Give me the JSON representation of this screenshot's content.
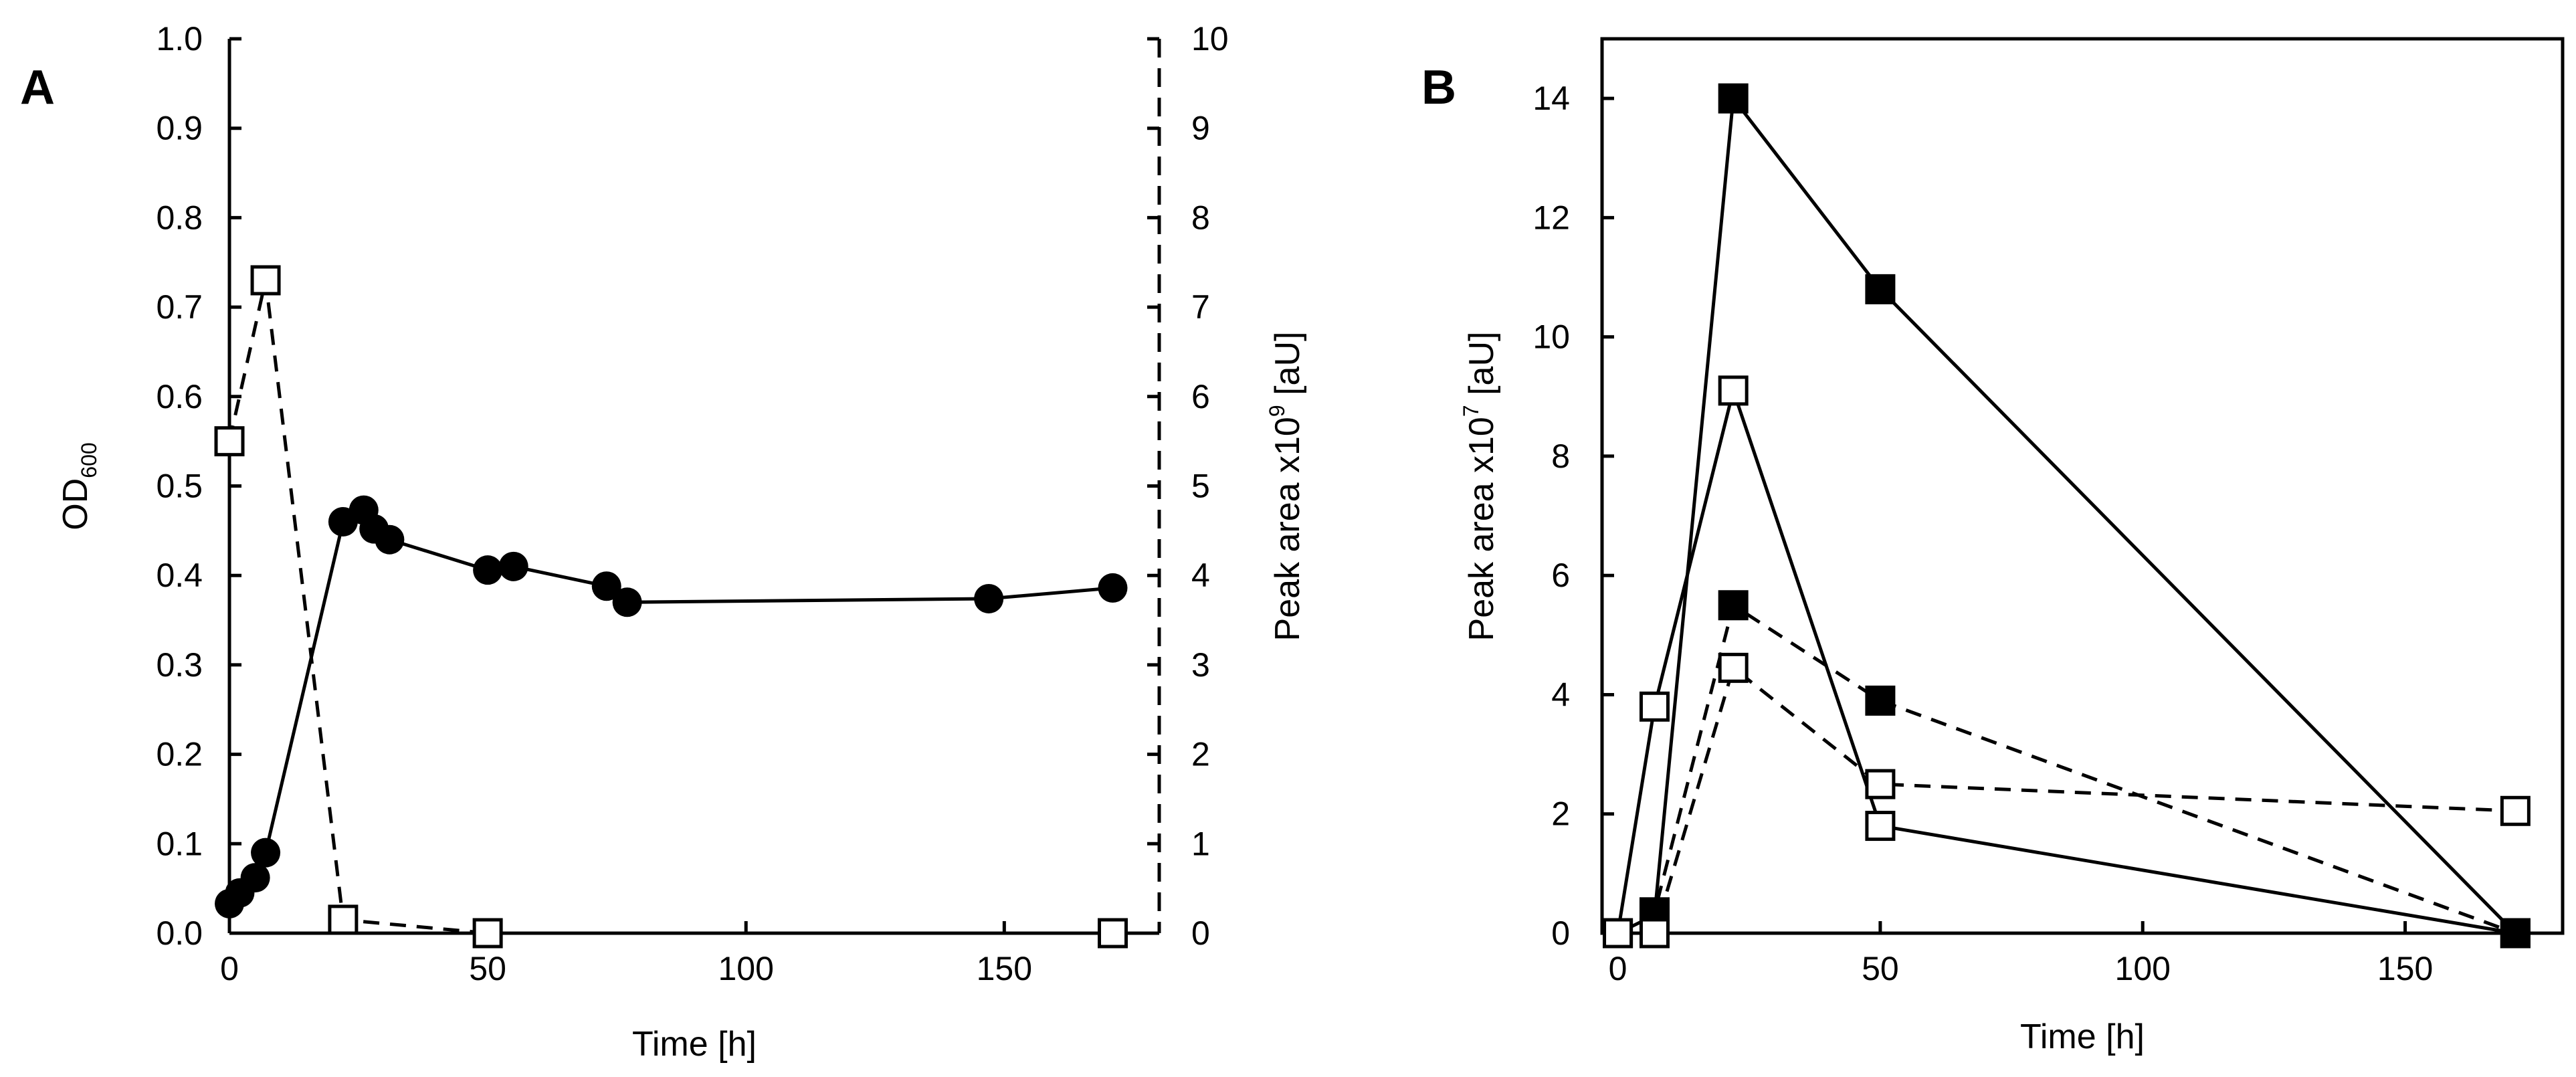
{
  "colors": {
    "ink": "#000000",
    "open_marker_fill": "#ffffff"
  },
  "chart_data": [
    {
      "panel": "A",
      "type": "line",
      "xlabel": "Time [h]",
      "x_ticks": [
        "0",
        "50",
        "100",
        "150"
      ],
      "xlim": [
        0,
        180
      ],
      "ylabel_left": {
        "base": "OD",
        "sub": "600"
      },
      "ylim_left": [
        0,
        1.0
      ],
      "y_ticks_left": [
        "0.0",
        "0.1",
        "0.2",
        "0.3",
        "0.4",
        "0.5",
        "0.6",
        "0.7",
        "0.8",
        "0.9",
        "1.0"
      ],
      "ylabel_right": {
        "prefix": "Peak area  x10",
        "sup": "9",
        "suffix": " [aU]"
      },
      "ylim_right": [
        0,
        10
      ],
      "y_ticks_right": [
        "0",
        "1",
        "2",
        "3",
        "4",
        "5",
        "6",
        "7",
        "8",
        "9",
        "10"
      ],
      "series": [
        {
          "name": "OD600",
          "axis": "left",
          "marker": "filled-circle",
          "line": "solid",
          "x": [
            0,
            2,
            5,
            7,
            22,
            26,
            28,
            31,
            50,
            55,
            73,
            77,
            147,
            171
          ],
          "y": [
            0.033,
            0.045,
            0.062,
            0.09,
            0.46,
            0.473,
            0.452,
            0.44,
            0.406,
            0.41,
            0.388,
            0.37,
            0.374,
            0.386
          ]
        },
        {
          "name": "Peak area",
          "axis": "right",
          "marker": "open-square",
          "line": "dashed",
          "x": [
            0,
            7,
            22,
            50,
            171
          ],
          "y": [
            5.5,
            7.3,
            0.15,
            0.0,
            0.0
          ]
        }
      ]
    },
    {
      "panel": "B",
      "type": "line",
      "xlabel": "Time [h]",
      "x_ticks": [
        "0",
        "50",
        "100",
        "150"
      ],
      "xlim": [
        -3,
        180
      ],
      "ylabel": {
        "prefix": "Peak area x10",
        "sup": "7",
        "suffix": " [aU]"
      },
      "ylim": [
        0,
        15
      ],
      "y_ticks": [
        "0",
        "2",
        "4",
        "6",
        "8",
        "10",
        "12",
        "14"
      ],
      "series": [
        {
          "name": "filled squares, solid",
          "marker": "filled-square",
          "line": "solid",
          "x": [
            0,
            7,
            22,
            50,
            171
          ],
          "y": [
            0,
            0.3,
            14.0,
            10.8,
            0
          ]
        },
        {
          "name": "open squares, solid",
          "marker": "open-square",
          "line": "solid",
          "x": [
            0,
            7,
            22,
            50,
            171
          ],
          "y": [
            0,
            3.8,
            9.1,
            1.8,
            0
          ]
        },
        {
          "name": "filled squares, dashed",
          "marker": "filled-square",
          "line": "dashed",
          "x": [
            0,
            7,
            22,
            50,
            171
          ],
          "y": [
            0,
            0.35,
            5.5,
            3.9,
            0
          ]
        },
        {
          "name": "open squares, dashed",
          "marker": "open-square",
          "line": "dashed",
          "x": [
            0,
            7,
            22,
            50,
            171
          ],
          "y": [
            0,
            0,
            4.45,
            2.5,
            2.05
          ]
        }
      ]
    }
  ]
}
